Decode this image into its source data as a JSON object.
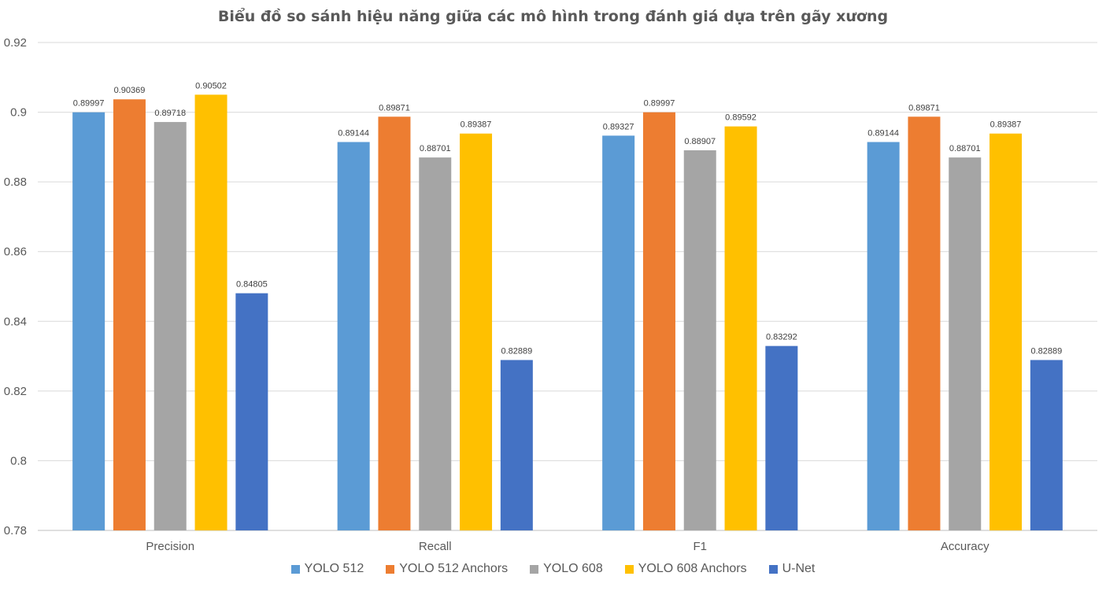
{
  "chart_data": {
    "type": "bar",
    "title": "Biểu đồ so sánh hiệu năng giữa các mô hình trong đánh giá dựa trên gãy xương",
    "categories": [
      "Precision",
      "Recall",
      "F1",
      "Accuracy"
    ],
    "series": [
      {
        "name": "YOLO 512",
        "color": "#5B9BD5",
        "values": [
          0.89997,
          0.89144,
          0.89327,
          0.89144
        ],
        "labels": [
          "0.89997",
          "0.89144",
          "0.89327",
          "0.89144"
        ]
      },
      {
        "name": "YOLO 512 Anchors",
        "color": "#ED7D31",
        "values": [
          0.90369,
          0.89871,
          0.89997,
          0.89871
        ],
        "labels": [
          "0.90369",
          "0.89871",
          "0.89997",
          "0.89871"
        ]
      },
      {
        "name": "YOLO 608",
        "color": "#A5A5A5",
        "values": [
          0.89718,
          0.88701,
          0.88907,
          0.88701
        ],
        "labels": [
          "0.89718",
          "0.88701",
          "0.88907",
          "0.88701"
        ]
      },
      {
        "name": "YOLO 608 Anchors",
        "color": "#FFC000",
        "values": [
          0.90502,
          0.89387,
          0.89592,
          0.89387
        ],
        "labels": [
          "0.90502",
          "0.89387",
          "0.89592",
          "0.89387"
        ]
      },
      {
        "name": "U-Net",
        "color": "#4472C4",
        "values": [
          0.84805,
          0.82889,
          0.83292,
          0.82889
        ],
        "labels": [
          "0.84805",
          "0.82889",
          "0.83292",
          "0.82889"
        ]
      }
    ],
    "ylim": [
      0.78,
      0.92
    ],
    "yticks": [
      0.78,
      0.8,
      0.82,
      0.84,
      0.86,
      0.88,
      0.9,
      0.92
    ],
    "ytick_labels": [
      "0.78",
      "0.8",
      "0.82",
      "0.84",
      "0.86",
      "0.88",
      "0.9",
      "0.92"
    ],
    "grid": true,
    "legend_position": "bottom",
    "xlabel": "",
    "ylabel": ""
  }
}
